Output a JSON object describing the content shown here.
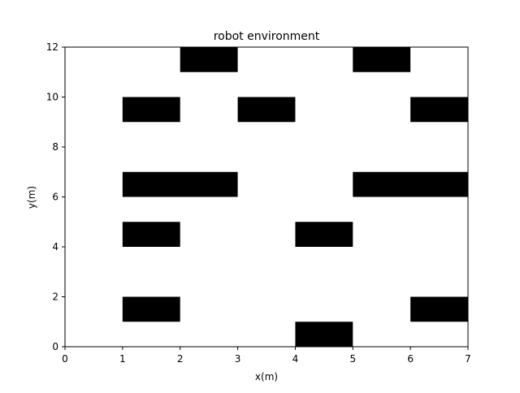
{
  "chart_data": {
    "type": "heatmap",
    "title": "robot environment",
    "xlabel": "x(m)",
    "ylabel": "y(m)",
    "xlim": [
      0,
      7
    ],
    "ylim": [
      0,
      12
    ],
    "xticks": [
      "0",
      "1",
      "2",
      "3",
      "4",
      "5",
      "6",
      "7"
    ],
    "yticks": [
      "0",
      "2",
      "4",
      "6",
      "8",
      "10",
      "12"
    ],
    "grid": false,
    "obstacle_color": "#000000",
    "background_color": "#ffffff",
    "obstacles": [
      {
        "x": [
          2,
          3
        ],
        "y": [
          11,
          12
        ]
      },
      {
        "x": [
          5,
          6
        ],
        "y": [
          11,
          12
        ]
      },
      {
        "x": [
          1,
          2
        ],
        "y": [
          9,
          10
        ]
      },
      {
        "x": [
          3,
          4
        ],
        "y": [
          9,
          10
        ]
      },
      {
        "x": [
          6,
          7
        ],
        "y": [
          9,
          10
        ]
      },
      {
        "x": [
          1,
          3
        ],
        "y": [
          6,
          7
        ]
      },
      {
        "x": [
          5,
          7
        ],
        "y": [
          6,
          7
        ]
      },
      {
        "x": [
          1,
          2
        ],
        "y": [
          4,
          5
        ]
      },
      {
        "x": [
          4,
          5
        ],
        "y": [
          4,
          5
        ]
      },
      {
        "x": [
          1,
          2
        ],
        "y": [
          1,
          2
        ]
      },
      {
        "x": [
          6,
          7
        ],
        "y": [
          1,
          2
        ]
      },
      {
        "x": [
          4,
          5
        ],
        "y": [
          0,
          1
        ]
      }
    ]
  }
}
